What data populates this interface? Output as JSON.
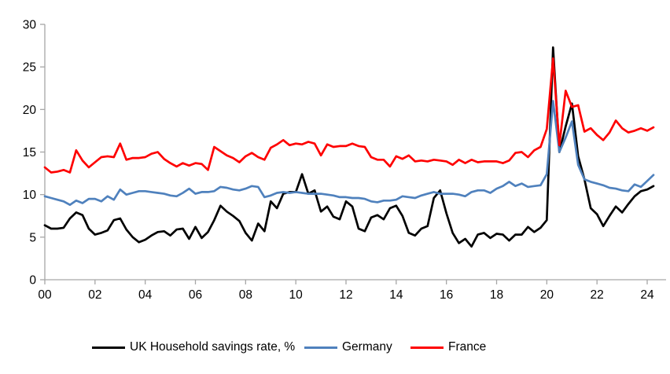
{
  "chart_data": {
    "type": "line",
    "title": "",
    "xlabel": "",
    "ylabel": "",
    "legend_position": "bottom",
    "grid": false,
    "axis_color": "#A6A6A6",
    "x_start": 2000,
    "x_step": 0.25,
    "x_axis": {
      "tick_years": [
        2000,
        2002,
        2004,
        2006,
        2008,
        2010,
        2012,
        2014,
        2016,
        2018,
        2020,
        2022,
        2024
      ],
      "tick_labels": [
        "00",
        "02",
        "04",
        "06",
        "08",
        "10",
        "12",
        "14",
        "16",
        "18",
        "20",
        "22",
        "24"
      ]
    },
    "y_axis": {
      "ticks": [
        0,
        5,
        10,
        15,
        20,
        25,
        30
      ],
      "ylim": [
        0,
        30
      ]
    },
    "series": [
      {
        "name": "UK Household savings rate, %",
        "color": "#000000",
        "values": [
          6.4,
          6.0,
          6.0,
          6.1,
          7.2,
          7.9,
          7.6,
          6.0,
          5.3,
          5.5,
          5.8,
          7.0,
          7.2,
          5.9,
          5.0,
          4.4,
          4.7,
          5.2,
          5.6,
          5.7,
          5.2,
          5.9,
          6.0,
          4.8,
          6.2,
          4.9,
          5.6,
          7.0,
          8.7,
          8.0,
          7.5,
          6.9,
          5.5,
          4.6,
          6.6,
          5.7,
          9.2,
          8.4,
          10.1,
          10.3,
          10.3,
          12.4,
          10.1,
          10.5,
          8.0,
          8.6,
          7.4,
          7.1,
          9.2,
          8.6,
          6.0,
          5.7,
          7.3,
          7.6,
          7.1,
          8.4,
          8.7,
          7.5,
          5.5,
          5.2,
          6.0,
          6.3,
          9.6,
          10.5,
          7.8,
          5.5,
          4.3,
          4.8,
          3.9,
          5.3,
          5.5,
          4.9,
          5.4,
          5.3,
          4.6,
          5.3,
          5.3,
          6.2,
          5.6,
          6.1,
          7.0,
          27.3,
          15.0,
          18.0,
          20.7,
          14.5,
          11.8,
          8.4,
          7.7,
          6.3,
          7.5,
          8.6,
          7.9,
          8.9,
          9.8,
          10.4,
          10.6,
          11.0
        ]
      },
      {
        "name": "Germany",
        "color": "#4F81BD",
        "values": [
          9.8,
          9.6,
          9.4,
          9.2,
          8.8,
          9.3,
          9.0,
          9.5,
          9.5,
          9.2,
          9.8,
          9.4,
          10.6,
          10.0,
          10.2,
          10.4,
          10.4,
          10.3,
          10.2,
          10.1,
          9.9,
          9.8,
          10.2,
          10.7,
          10.1,
          10.3,
          10.3,
          10.4,
          10.9,
          10.8,
          10.6,
          10.5,
          10.7,
          11.0,
          10.9,
          9.7,
          9.9,
          10.2,
          10.3,
          10.2,
          10.3,
          10.2,
          10.1,
          10.1,
          10.1,
          10.0,
          9.9,
          9.7,
          9.7,
          9.6,
          9.6,
          9.5,
          9.2,
          9.1,
          9.3,
          9.3,
          9.4,
          9.8,
          9.7,
          9.6,
          9.9,
          10.1,
          10.3,
          10.1,
          10.1,
          10.1,
          10.0,
          9.8,
          10.3,
          10.5,
          10.5,
          10.2,
          10.7,
          11.0,
          11.5,
          11.0,
          11.3,
          10.9,
          11.0,
          11.1,
          12.4,
          21.0,
          15.0,
          16.7,
          18.6,
          13.5,
          11.8,
          11.5,
          11.3,
          11.1,
          10.8,
          10.7,
          10.5,
          10.4,
          11.2,
          10.9,
          11.6,
          12.3
        ]
      },
      {
        "name": "France",
        "color": "#FE0000",
        "values": [
          13.2,
          12.6,
          12.7,
          12.9,
          12.6,
          15.2,
          14.0,
          13.2,
          13.8,
          14.4,
          14.5,
          14.4,
          16.0,
          14.1,
          14.3,
          14.3,
          14.4,
          14.8,
          15.0,
          14.2,
          13.7,
          13.3,
          13.7,
          13.4,
          13.7,
          13.6,
          12.9,
          15.6,
          15.1,
          14.6,
          14.3,
          13.8,
          14.5,
          14.9,
          14.4,
          14.1,
          15.5,
          15.9,
          16.4,
          15.8,
          16.0,
          15.9,
          16.2,
          16.0,
          14.6,
          15.9,
          15.6,
          15.7,
          15.7,
          16.0,
          15.7,
          15.6,
          14.4,
          14.1,
          14.1,
          13.3,
          14.5,
          14.2,
          14.6,
          13.9,
          14.0,
          13.9,
          14.1,
          14.0,
          13.9,
          13.5,
          14.1,
          13.7,
          14.1,
          13.8,
          13.9,
          13.9,
          13.9,
          13.7,
          14.0,
          14.9,
          15.0,
          14.4,
          15.2,
          15.6,
          17.7,
          26.0,
          15.8,
          22.2,
          20.3,
          20.5,
          17.4,
          17.8,
          17.0,
          16.4,
          17.3,
          18.7,
          17.8,
          17.3,
          17.5,
          17.8,
          17.5,
          17.9
        ]
      }
    ]
  },
  "legend": {
    "uk_label": "UK Household savings rate, %",
    "germany_label": "Germany",
    "france_label": "France"
  }
}
